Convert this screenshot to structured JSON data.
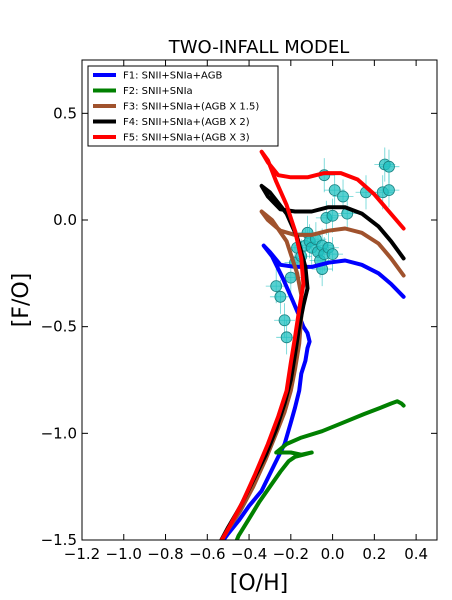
{
  "chart_data": {
    "type": "line",
    "title": "TWO-INFALL MODEL",
    "xlabel": "[O/H]",
    "ylabel": "[F/O]",
    "xlim": [
      -1.2,
      0.5
    ],
    "ylim": [
      -1.5,
      0.75
    ],
    "x_ticks": [
      "−1.2",
      "−1.0",
      "−0.8",
      "−0.6",
      "−0.4",
      "−0.2",
      "0.0",
      "0.2",
      "0.4"
    ],
    "x_tick_values": [
      -1.2,
      -1.0,
      -0.8,
      -0.6,
      -0.4,
      -0.2,
      0.0,
      0.2,
      0.4
    ],
    "y_ticks": [
      "−1.5",
      "−1.0",
      "−0.5",
      "0.0",
      "0.5"
    ],
    "y_tick_values": [
      -1.5,
      -1.0,
      -0.5,
      0.0,
      0.5
    ],
    "legend_position": "top-left",
    "series": [
      {
        "name": "F1: SNII+SNIa+AGB",
        "color": "#0000ff",
        "points": [
          [
            -0.56,
            -1.55
          ],
          [
            -0.5,
            -1.47
          ],
          [
            -0.45,
            -1.41
          ],
          [
            -0.4,
            -1.34
          ],
          [
            -0.34,
            -1.27
          ],
          [
            -0.28,
            -1.15
          ],
          [
            -0.23,
            -1.05
          ],
          [
            -0.2,
            -0.95
          ],
          [
            -0.18,
            -0.88
          ],
          [
            -0.16,
            -0.8
          ],
          [
            -0.15,
            -0.72
          ],
          [
            -0.13,
            -0.66
          ],
          [
            -0.12,
            -0.6
          ],
          [
            -0.11,
            -0.57
          ],
          [
            -0.12,
            -0.53
          ],
          [
            -0.14,
            -0.5
          ],
          [
            -0.16,
            -0.45
          ],
          [
            -0.19,
            -0.38
          ],
          [
            -0.24,
            -0.27
          ],
          [
            -0.29,
            -0.17
          ],
          [
            -0.33,
            -0.12
          ],
          [
            -0.3,
            -0.15
          ],
          [
            -0.25,
            -0.21
          ],
          [
            -0.18,
            -0.22
          ],
          [
            -0.1,
            -0.22
          ],
          [
            -0.02,
            -0.2
          ],
          [
            0.06,
            -0.19
          ],
          [
            0.14,
            -0.21
          ],
          [
            0.22,
            -0.25
          ],
          [
            0.28,
            -0.3
          ],
          [
            0.34,
            -0.36
          ]
        ]
      },
      {
        "name": "F2: SNII+SNIa",
        "color": "#008000",
        "points": [
          [
            -0.48,
            -1.55
          ],
          [
            -0.45,
            -1.48
          ],
          [
            -0.4,
            -1.4
          ],
          [
            -0.35,
            -1.32
          ],
          [
            -0.3,
            -1.25
          ],
          [
            -0.25,
            -1.18
          ],
          [
            -0.21,
            -1.13
          ],
          [
            -0.18,
            -1.11
          ],
          [
            -0.14,
            -1.1
          ],
          [
            -0.1,
            -1.09
          ],
          [
            -0.15,
            -1.1
          ],
          [
            -0.2,
            -1.09
          ],
          [
            -0.27,
            -1.09
          ],
          [
            -0.22,
            -1.05
          ],
          [
            -0.15,
            -1.02
          ],
          [
            -0.05,
            -0.99
          ],
          [
            0.05,
            -0.95
          ],
          [
            0.15,
            -0.91
          ],
          [
            0.23,
            -0.88
          ],
          [
            0.28,
            -0.86
          ],
          [
            0.31,
            -0.85
          ],
          [
            0.33,
            -0.86
          ],
          [
            0.34,
            -0.87
          ]
        ]
      },
      {
        "name": "F3: SNII+SNIa+(AGB X 1.5)",
        "color": "#a0522d",
        "points": [
          [
            -0.56,
            -1.55
          ],
          [
            -0.5,
            -1.45
          ],
          [
            -0.44,
            -1.36
          ],
          [
            -0.38,
            -1.25
          ],
          [
            -0.32,
            -1.12
          ],
          [
            -0.27,
            -1.0
          ],
          [
            -0.23,
            -0.9
          ],
          [
            -0.2,
            -0.8
          ],
          [
            -0.18,
            -0.7
          ],
          [
            -0.16,
            -0.58
          ],
          [
            -0.15,
            -0.45
          ],
          [
            -0.15,
            -0.35
          ],
          [
            -0.17,
            -0.25
          ],
          [
            -0.22,
            -0.1
          ],
          [
            -0.29,
            0.0
          ],
          [
            -0.34,
            0.04
          ],
          [
            -0.31,
            0.0
          ],
          [
            -0.25,
            -0.05
          ],
          [
            -0.18,
            -0.07
          ],
          [
            -0.1,
            -0.07
          ],
          [
            -0.02,
            -0.05
          ],
          [
            0.06,
            -0.04
          ],
          [
            0.14,
            -0.06
          ],
          [
            0.22,
            -0.11
          ],
          [
            0.28,
            -0.18
          ],
          [
            0.34,
            -0.26
          ]
        ]
      },
      {
        "name": "F4: SNII+SNIa+(AGB X 2)",
        "color": "#000000",
        "points": [
          [
            -0.56,
            -1.55
          ],
          [
            -0.5,
            -1.44
          ],
          [
            -0.44,
            -1.34
          ],
          [
            -0.38,
            -1.22
          ],
          [
            -0.32,
            -1.1
          ],
          [
            -0.27,
            -0.98
          ],
          [
            -0.23,
            -0.86
          ],
          [
            -0.2,
            -0.75
          ],
          [
            -0.18,
            -0.63
          ],
          [
            -0.16,
            -0.5
          ],
          [
            -0.14,
            -0.4
          ],
          [
            -0.12,
            -0.32
          ],
          [
            -0.13,
            -0.22
          ],
          [
            -0.17,
            -0.08
          ],
          [
            -0.22,
            0.03
          ],
          [
            -0.3,
            0.13
          ],
          [
            -0.34,
            0.16
          ],
          [
            -0.31,
            0.11
          ],
          [
            -0.25,
            0.05
          ],
          [
            -0.18,
            0.04
          ],
          [
            -0.1,
            0.04
          ],
          [
            -0.02,
            0.06
          ],
          [
            0.06,
            0.06
          ],
          [
            0.14,
            0.03
          ],
          [
            0.22,
            -0.03
          ],
          [
            0.28,
            -0.1
          ],
          [
            0.34,
            -0.18
          ]
        ]
      },
      {
        "name": "F5: SNII+SNIa+(AGB X 3)",
        "color": "#ff0000",
        "points": [
          [
            -0.56,
            -1.55
          ],
          [
            -0.49,
            -1.43
          ],
          [
            -0.43,
            -1.32
          ],
          [
            -0.37,
            -1.19
          ],
          [
            -0.31,
            -1.05
          ],
          [
            -0.26,
            -0.92
          ],
          [
            -0.22,
            -0.8
          ],
          [
            -0.2,
            -0.67
          ],
          [
            -0.18,
            -0.55
          ],
          [
            -0.16,
            -0.42
          ],
          [
            -0.14,
            -0.3
          ],
          [
            -0.15,
            -0.18
          ],
          [
            -0.18,
            -0.05
          ],
          [
            -0.22,
            0.07
          ],
          [
            -0.27,
            0.18
          ],
          [
            -0.31,
            0.28
          ],
          [
            -0.34,
            0.32
          ],
          [
            -0.31,
            0.27
          ],
          [
            -0.26,
            0.21
          ],
          [
            -0.2,
            0.2
          ],
          [
            -0.12,
            0.2
          ],
          [
            -0.04,
            0.22
          ],
          [
            0.04,
            0.22
          ],
          [
            0.12,
            0.19
          ],
          [
            0.2,
            0.12
          ],
          [
            0.27,
            0.04
          ],
          [
            0.34,
            -0.04
          ]
        ]
      }
    ],
    "observations": {
      "name": "",
      "color": "#20c0c0",
      "points": [
        [
          -0.27,
          -0.31,
          0.05,
          0.08
        ],
        [
          -0.25,
          -0.36,
          0.05,
          0.08
        ],
        [
          -0.23,
          -0.47,
          0.05,
          0.08
        ],
        [
          -0.22,
          -0.55,
          0.05,
          0.08
        ],
        [
          -0.2,
          -0.27,
          0.05,
          0.08
        ],
        [
          -0.18,
          -0.2,
          0.05,
          0.08
        ],
        [
          -0.17,
          -0.13,
          0.05,
          0.08
        ],
        [
          -0.15,
          -0.17,
          0.05,
          0.08
        ],
        [
          -0.13,
          -0.12,
          0.05,
          0.08
        ],
        [
          -0.12,
          -0.06,
          0.05,
          0.08
        ],
        [
          -0.11,
          -0.1,
          0.05,
          0.08
        ],
        [
          -0.1,
          -0.13,
          0.05,
          0.08
        ],
        [
          -0.08,
          -0.09,
          0.05,
          0.08
        ],
        [
          -0.07,
          -0.15,
          0.05,
          0.08
        ],
        [
          -0.06,
          -0.19,
          0.05,
          0.08
        ],
        [
          -0.05,
          -0.23,
          0.05,
          0.08
        ],
        [
          -0.05,
          -0.12,
          0.05,
          0.08
        ],
        [
          -0.04,
          -0.16,
          0.05,
          0.08
        ],
        [
          -0.03,
          0.01,
          0.05,
          0.08
        ],
        [
          -0.02,
          -0.13,
          0.05,
          0.08
        ],
        [
          0.0,
          -0.16,
          0.05,
          0.08
        ],
        [
          0.0,
          0.02,
          0.05,
          0.08
        ],
        [
          -0.04,
          0.21,
          0.05,
          0.08
        ],
        [
          0.01,
          0.14,
          0.05,
          0.08
        ],
        [
          0.05,
          0.11,
          0.05,
          0.08
        ],
        [
          0.07,
          0.03,
          0.05,
          0.08
        ],
        [
          0.16,
          0.13,
          0.05,
          0.08
        ],
        [
          0.24,
          0.13,
          0.05,
          0.08
        ],
        [
          0.25,
          0.26,
          0.05,
          0.08
        ],
        [
          0.27,
          0.25,
          0.05,
          0.08
        ],
        [
          0.27,
          0.14,
          0.05,
          0.08
        ]
      ]
    }
  }
}
